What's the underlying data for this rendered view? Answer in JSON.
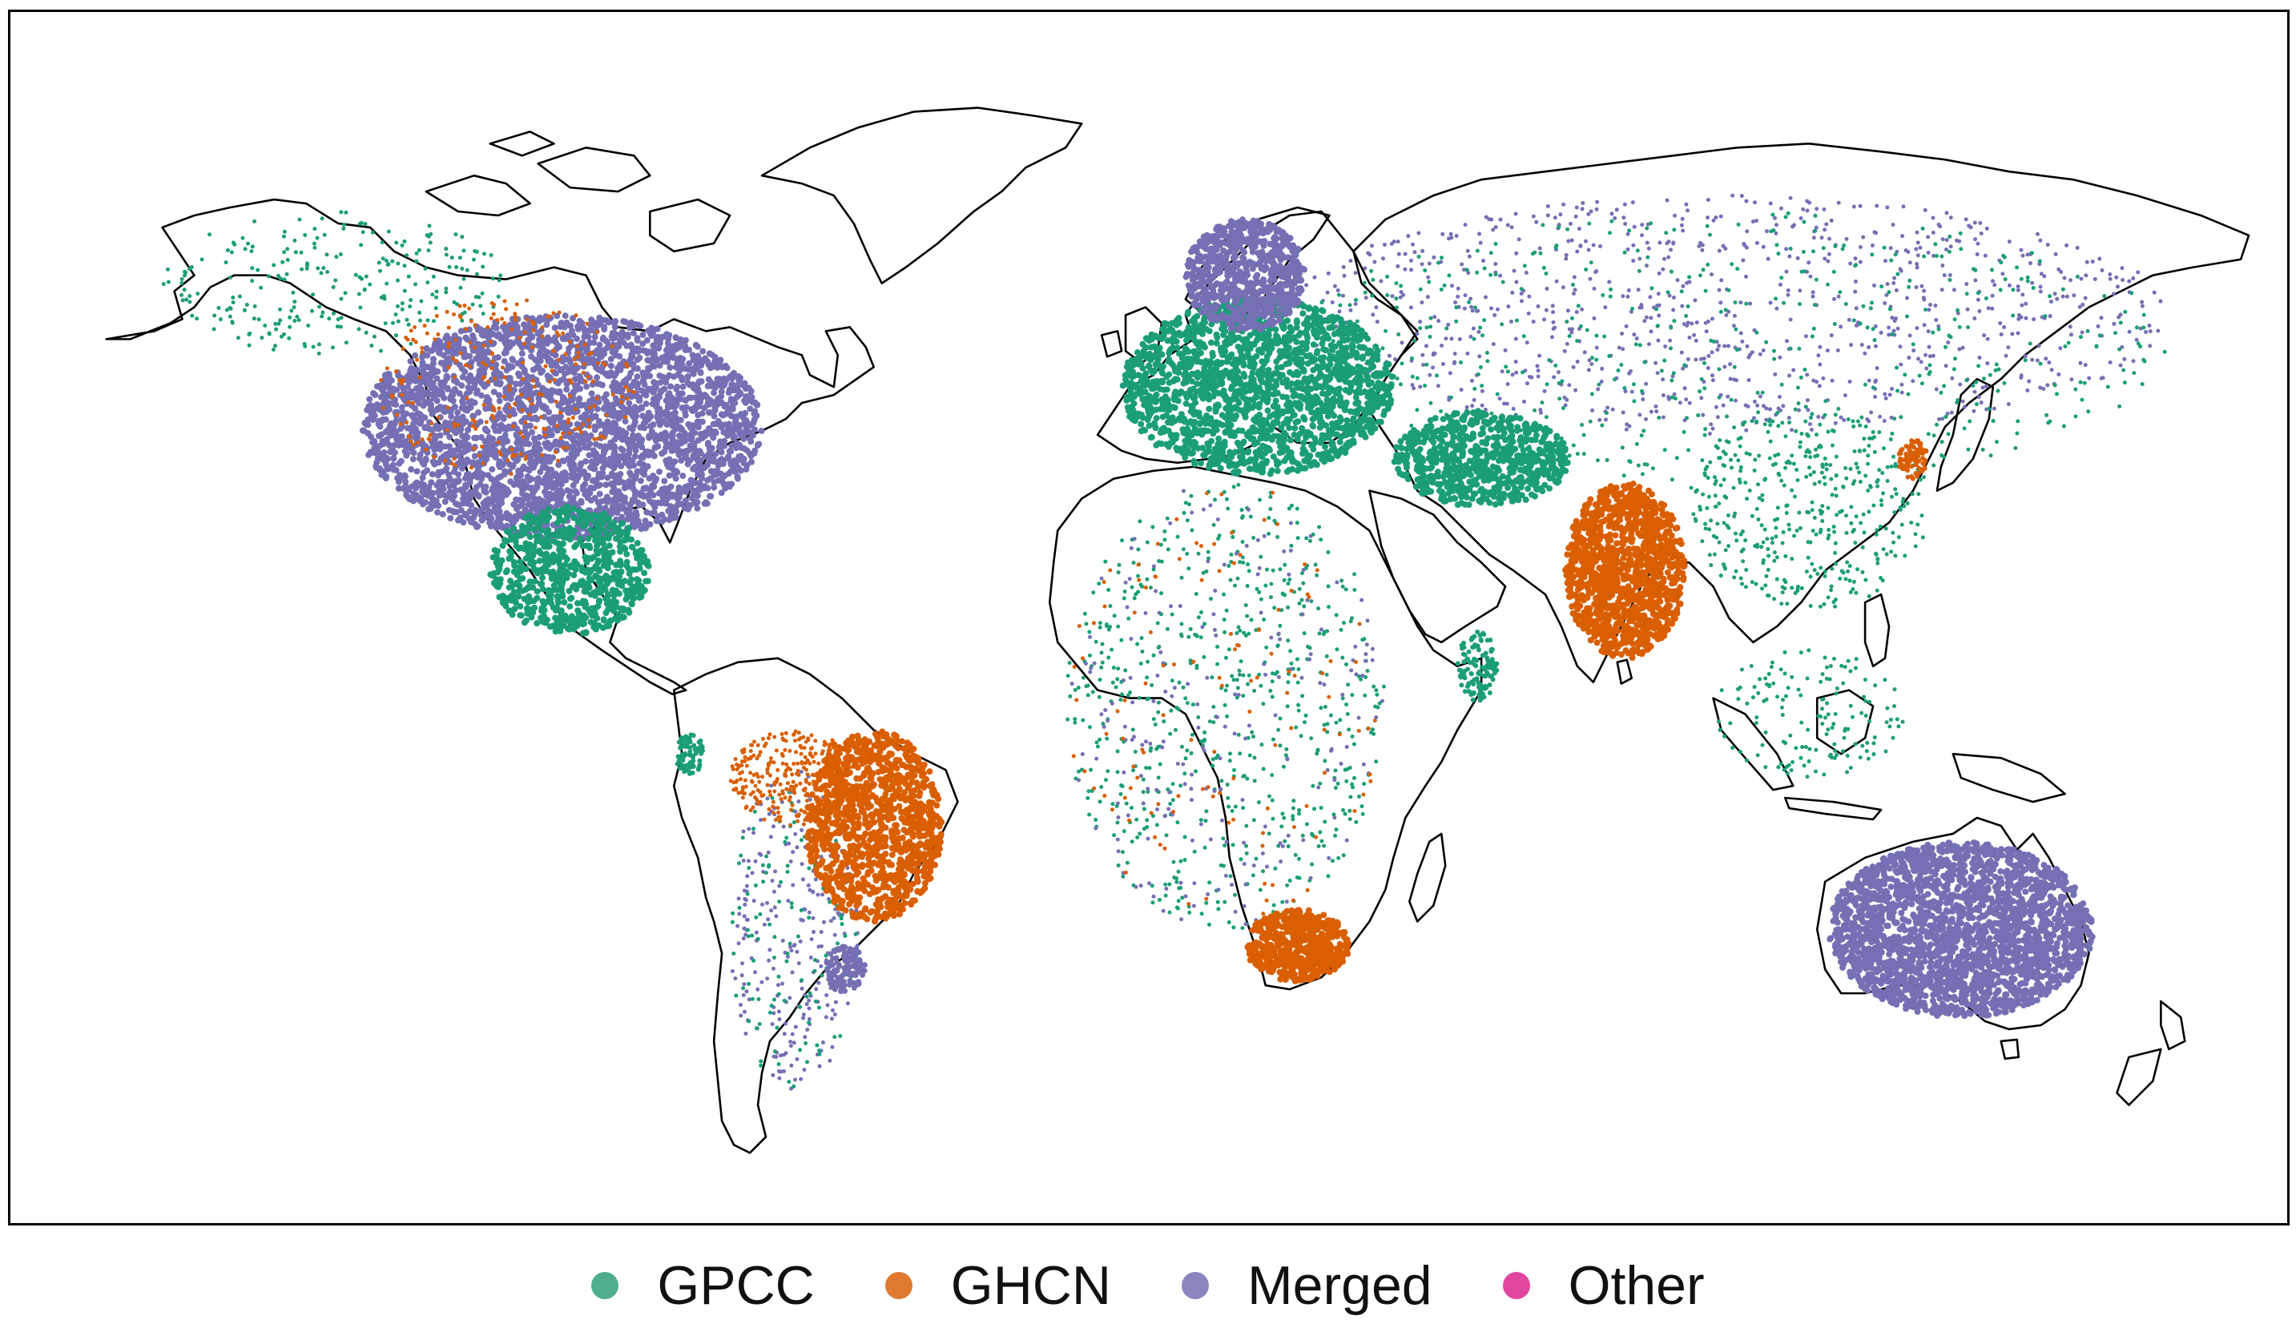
{
  "legend": {
    "items": [
      {
        "label": "GPCC",
        "color": "#4fae8e",
        "icon": "dot-icon"
      },
      {
        "label": "GHCN",
        "color": "#e07a30",
        "icon": "dot-icon"
      },
      {
        "label": "Merged",
        "color": "#8b86c0",
        "icon": "dot-icon"
      },
      {
        "label": "Other",
        "color": "#e247a0",
        "icon": "dot-icon"
      }
    ]
  },
  "map_data": {
    "type": "station-map",
    "projection": "equirectangular",
    "coastlines": true,
    "legend_position": "bottom-center",
    "point_colors": {
      "GPCC": "#1b9e77",
      "GHCN": "#d95f02",
      "Merged": "#7570b3",
      "Other": "#e7298a"
    },
    "dominant_regions": [
      {
        "region": "United States & southern Canada",
        "source": "Merged"
      },
      {
        "region": "Mexico & Central America",
        "source": "GPCC"
      },
      {
        "region": "Europe",
        "source": "GPCC"
      },
      {
        "region": "Scandinavia",
        "source": "Merged"
      },
      {
        "region": "Middle East",
        "source": "GPCC"
      },
      {
        "region": "India",
        "source": "GHCN"
      },
      {
        "region": "Eastern Brazil",
        "source": "GHCN"
      },
      {
        "region": "South Africa",
        "source": "GHCN"
      },
      {
        "region": "Australia",
        "source": "Merged"
      },
      {
        "region": "Russia & Central Asia",
        "source": "Merged"
      }
    ]
  }
}
